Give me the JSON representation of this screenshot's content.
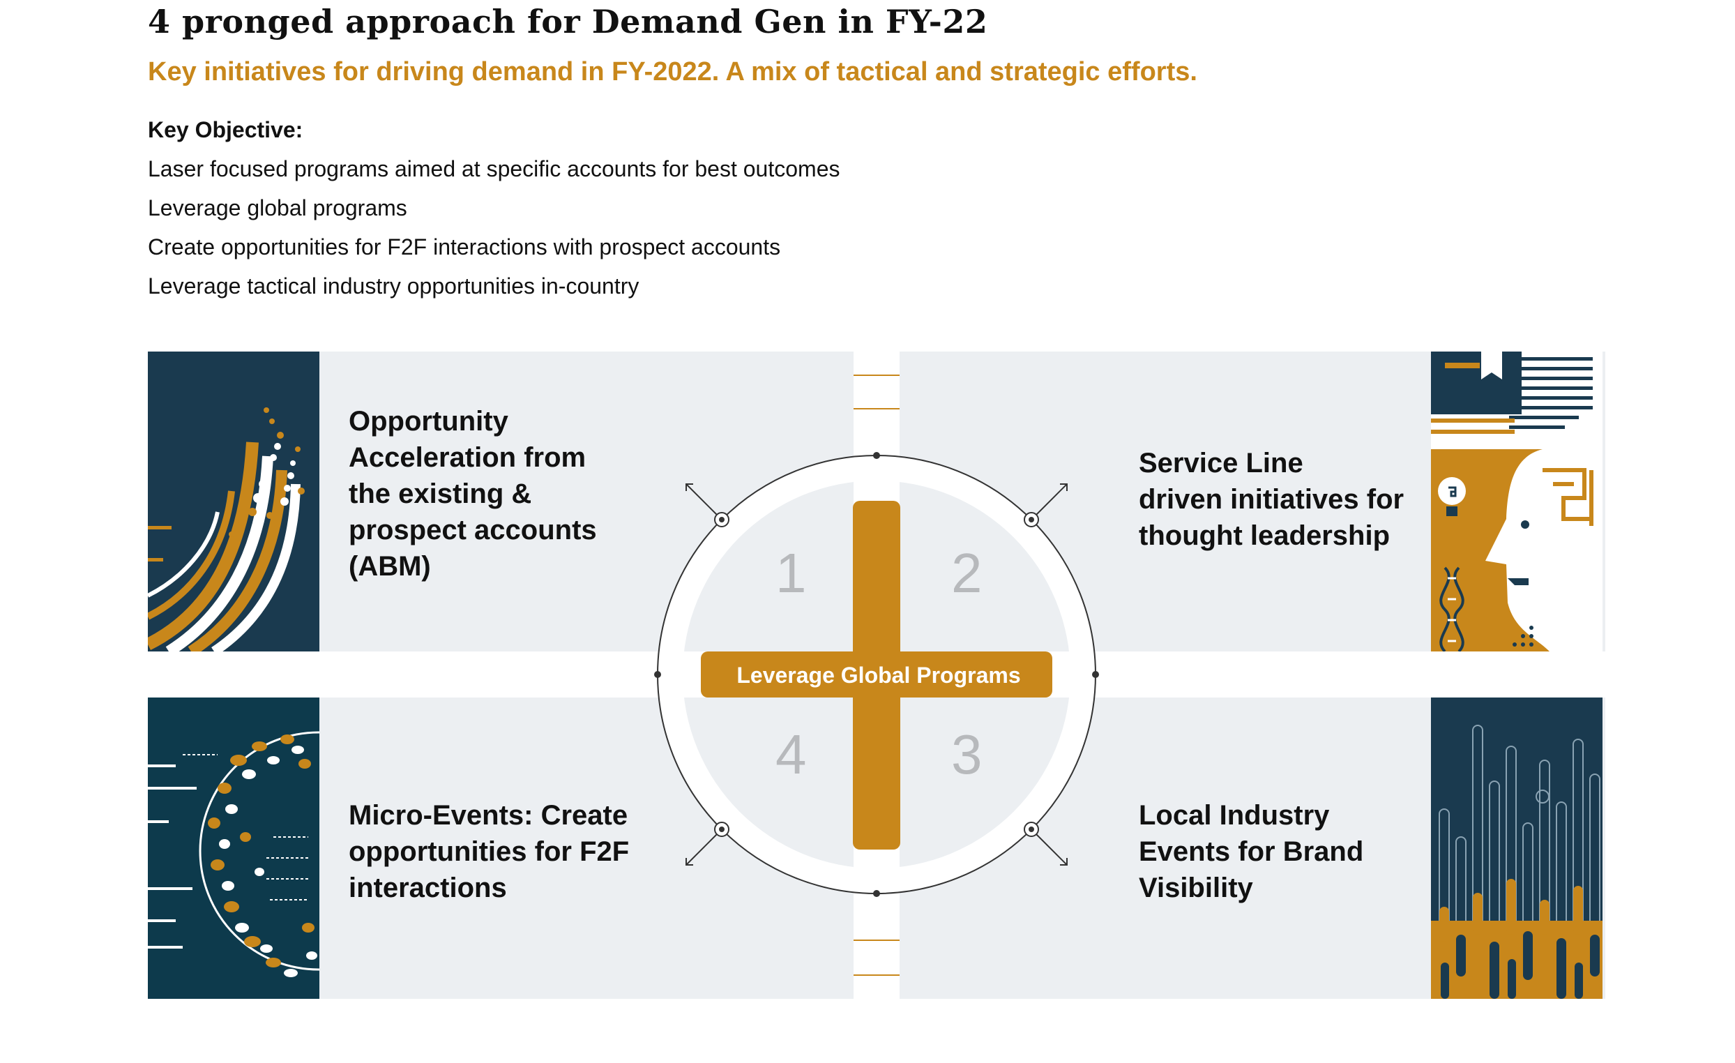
{
  "header": {
    "title": "4 pronged approach for Demand Gen in FY-22",
    "subtitle": "Key initiatives for driving demand in FY-2022. A mix of tactical and strategic efforts."
  },
  "objective": {
    "heading": "Key Objective:",
    "items": [
      "Laser focused programs aimed at specific accounts for best outcomes",
      "Leverage global programs",
      "Create opportunities for F2F interactions with prospect accounts",
      "Leverage tactical industry opportunities in-country"
    ]
  },
  "diagram": {
    "center_label": "Leverage Global Programs",
    "numbers": [
      "1",
      "2",
      "3",
      "4"
    ],
    "quadrants": [
      {
        "text": "Opportunity\nAcceleration from\nthe existing &\nprospect accounts\n(ABM)"
      },
      {
        "text": "Service Line\ndriven initiatives for\nthought leadership"
      },
      {
        "text": "Local Industry\nEvents for Brand\nVisibility"
      },
      {
        "text": "Micro-Events: Create\nopportunities for F2F\ninteractions"
      }
    ],
    "colors": {
      "accent": "#c8871b",
      "navy": "#1a3a4f",
      "panel": "#eceff2",
      "ring": "#333333"
    },
    "icons": [
      "abm-stripes-art",
      "thought-leadership-head-art",
      "sphere-network-art",
      "city-bars-art"
    ]
  }
}
